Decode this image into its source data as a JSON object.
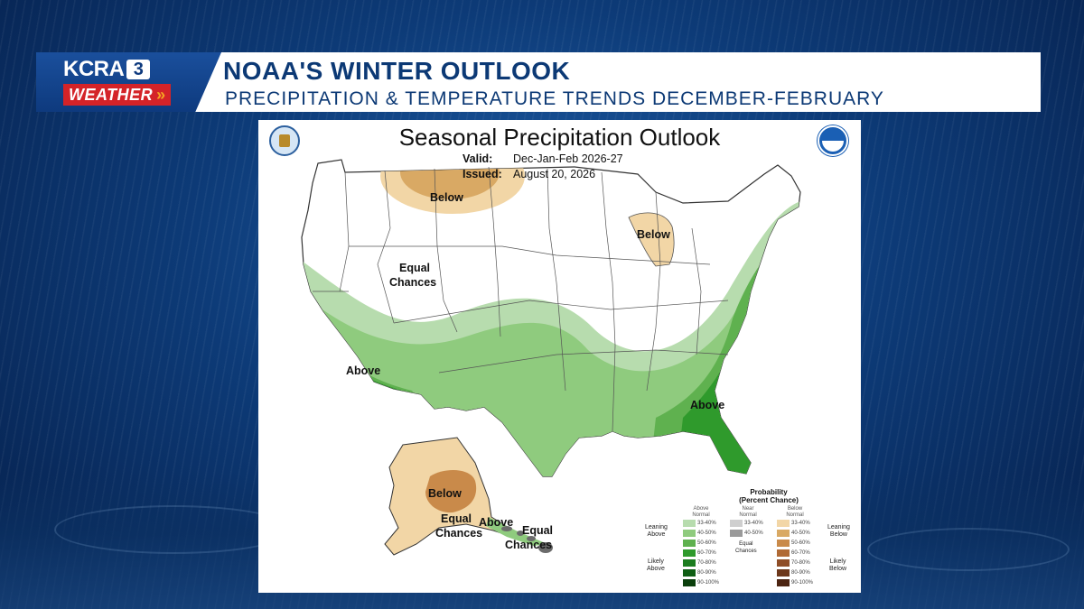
{
  "station": {
    "call_sign": "KCRA",
    "channel": "3",
    "tagline": "WEATHER",
    "chevron": "»"
  },
  "banner": {
    "title": "NOAA'S WINTER OUTLOOK",
    "subtitle": "PRECIPITATION & TEMPERATURE TRENDS DECEMBER-FEBRUARY"
  },
  "map": {
    "title": "Seasonal Precipitation Outlook",
    "valid_label": "Valid:",
    "valid_value": "Dec-Jan-Feb 2026-27",
    "issued_label": "Issued:",
    "issued_value": "August 20, 2026",
    "labels": {
      "below_north": "Below",
      "below_michigan": "Below",
      "equal_west_1": "Equal",
      "equal_west_2": "Chances",
      "above_west": "Above",
      "above_southeast": "Above",
      "below_alaska": "Below",
      "equal_alaska_1": "Equal",
      "equal_alaska_2": "Chances",
      "above_alaska": "Above",
      "equal_hawaii_1": "Equal",
      "equal_hawaii_2": "Chances"
    },
    "colors": {
      "above_33_40": "#b7dcae",
      "above_40_50": "#8fcb7e",
      "above_50_60": "#5fb14f",
      "above_60_70": "#2f9a2c",
      "above_70_80": "#1c7d1f",
      "above_80_90": "#0f5e14",
      "above_90_100": "#0a3f0c",
      "below_33_40": "#f2d6a6",
      "below_40_50": "#d9a964",
      "below_50_60": "#c98a4a",
      "below_60_70": "#b06a35",
      "below_70_80": "#8f4e27",
      "below_80_90": "#6d381b",
      "below_90_100": "#4c2412",
      "normal_33_40": "#cfcfcf",
      "normal_40_50": "#9a9a9a",
      "state_line": "#555555",
      "ocean": "#ffffff"
    }
  },
  "legend": {
    "title_1": "Probability",
    "title_2": "(Percent Chance)",
    "col_above": "Above\nNormal",
    "col_near": "Near\nNormal",
    "col_below": "Below\nNormal",
    "leaning_above": "Leaning\nAbove",
    "likely_above": "Likely\nAbove",
    "leaning_below": "Leaning\nBelow",
    "likely_below": "Likely\nBelow",
    "equal_chances": "Equal\nChances",
    "above_ranges": [
      "33-40%",
      "40-50%",
      "50-60%",
      "60-70%",
      "70-80%",
      "80-90%",
      "90-100%"
    ],
    "near_ranges": [
      "33-40%",
      "40-50%"
    ],
    "below_ranges": [
      "33-40%",
      "40-50%",
      "50-60%",
      "60-70%",
      "70-80%",
      "80-90%",
      "90-100%"
    ]
  }
}
